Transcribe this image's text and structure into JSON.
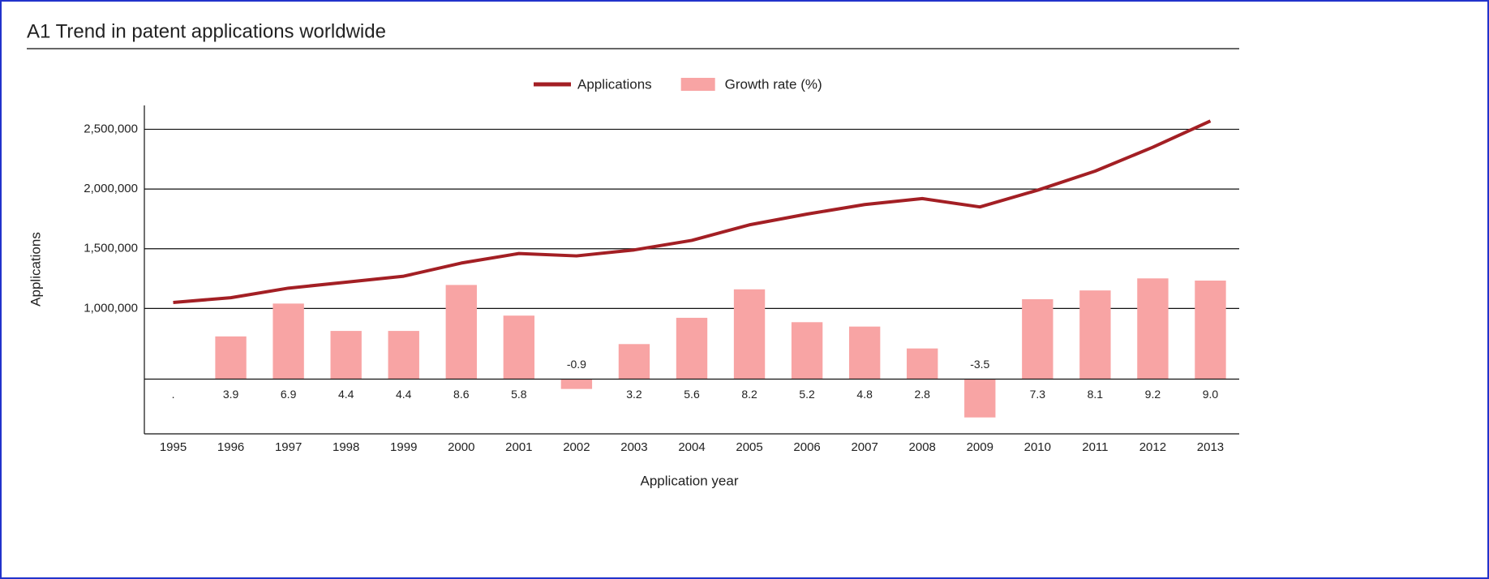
{
  "chart_data": {
    "type": "line",
    "title": "A1 Trend in patent applications worldwide",
    "x_label": "Application year",
    "y_label": "Applications",
    "categories": [
      "1995",
      "1996",
      "1997",
      "1998",
      "1999",
      "2000",
      "2001",
      "2002",
      "2003",
      "2004",
      "2005",
      "2006",
      "2007",
      "2008",
      "2009",
      "2010",
      "2011",
      "2012",
      "2013"
    ],
    "series": [
      {
        "name": "Applications",
        "type": "line",
        "color": "#a31f24",
        "values": [
          1050000,
          1090000,
          1170000,
          1220000,
          1270000,
          1380000,
          1460000,
          1440000,
          1490000,
          1570000,
          1700000,
          1790000,
          1870000,
          1920000,
          1850000,
          1990000,
          2150000,
          2350000,
          2570000
        ]
      },
      {
        "name": "Growth rate (%)",
        "type": "bar",
        "axis": "y2",
        "color": "#f8a4a4",
        "values": [
          null,
          3.9,
          6.9,
          4.4,
          4.4,
          8.6,
          5.8,
          -0.9,
          3.2,
          5.6,
          8.2,
          5.2,
          4.8,
          2.8,
          -3.5,
          7.3,
          8.1,
          9.2,
          9.0
        ],
        "value_labels": [
          ".",
          "3.9",
          "6.9",
          "4.4",
          "4.4",
          "8.6",
          "5.8",
          "-0.9",
          "3.2",
          "5.6",
          "8.2",
          "5.2",
          "4.8",
          "2.8",
          "-3.5",
          "7.3",
          "8.1",
          "9.2",
          "9.0"
        ]
      }
    ],
    "ylim": [
      -50000,
      2700000
    ],
    "yticks": [
      {
        "value": 1000000,
        "label": "1,000,000"
      },
      {
        "value": 1500000,
        "label": "1,500,000"
      },
      {
        "value": 2000000,
        "label": "2,000,000"
      },
      {
        "value": 2500000,
        "label": "2,500,000"
      }
    ],
    "y2lim": [
      -5,
      25
    ],
    "grid": true,
    "legend": "top"
  }
}
